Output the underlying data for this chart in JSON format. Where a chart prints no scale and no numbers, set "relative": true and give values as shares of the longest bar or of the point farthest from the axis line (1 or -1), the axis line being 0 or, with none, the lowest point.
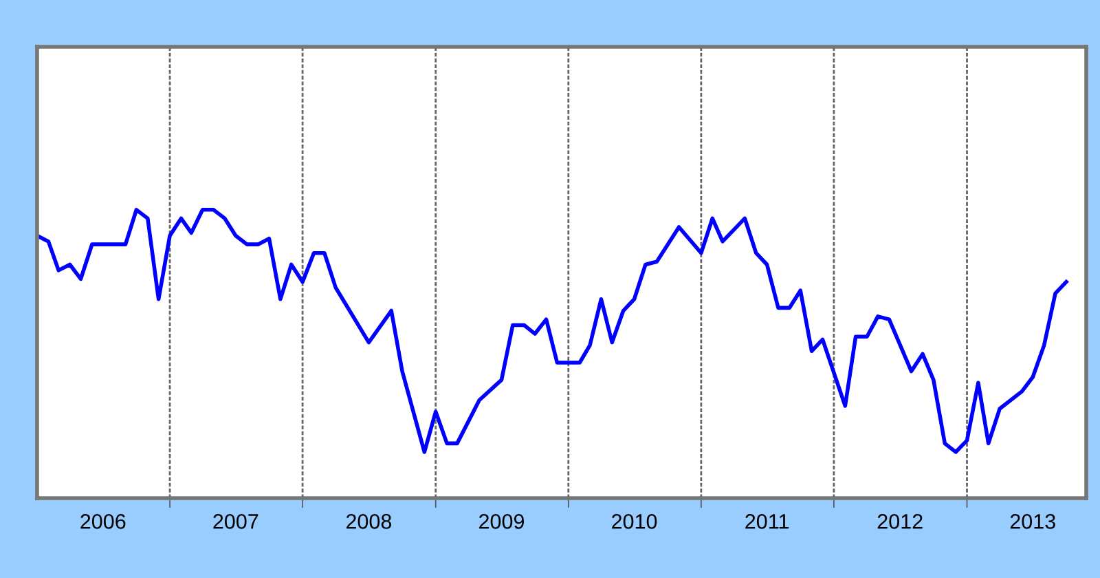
{
  "chart_data": {
    "type": "line",
    "relative": true,
    "x": [
      "2006-01",
      "2006-02",
      "2006-03",
      "2006-04",
      "2006-05",
      "2006-06",
      "2006-09",
      "2006-10",
      "2006-11",
      "2006-12",
      "2007-01",
      "2007-02",
      "2007-03",
      "2007-04",
      "2007-05",
      "2007-06",
      "2007-07",
      "2007-08",
      "2007-09",
      "2007-10",
      "2007-11",
      "2007-12",
      "2008-01",
      "2008-02",
      "2008-03",
      "2008-04",
      "2008-07",
      "2008-09",
      "2008-10",
      "2008-12",
      "2009-01",
      "2009-02",
      "2009-03",
      "2009-05",
      "2009-07",
      "2009-08",
      "2009-09",
      "2009-10",
      "2009-11",
      "2009-12",
      "2010-02",
      "2010-03",
      "2010-04",
      "2010-05",
      "2010-06",
      "2010-07",
      "2010-08",
      "2010-09",
      "2010-11",
      "2011-01",
      "2011-02",
      "2011-03",
      "2011-05",
      "2011-06",
      "2011-07",
      "2011-08",
      "2011-09",
      "2011-10",
      "2011-11",
      "2011-12",
      "2012-02",
      "2012-03",
      "2012-04",
      "2012-05",
      "2012-06",
      "2012-08",
      "2012-09",
      "2012-10",
      "2012-11",
      "2012-12",
      "2013-01",
      "2013-02",
      "2013-03",
      "2013-04",
      "2013-06",
      "2013-07",
      "2013-08",
      "2013-09",
      "2013-10"
    ],
    "series": [
      {
        "color": "#0000ff",
        "values": [
          0.91,
          0.89,
          0.79,
          0.81,
          0.76,
          0.88,
          0.88,
          1.0,
          0.97,
          0.69,
          0.91,
          0.97,
          0.92,
          1.0,
          1.0,
          0.97,
          0.91,
          0.88,
          0.88,
          0.9,
          0.69,
          0.81,
          0.75,
          0.85,
          0.85,
          0.73,
          0.54,
          0.65,
          0.44,
          0.16,
          0.3,
          0.19,
          0.19,
          0.34,
          0.41,
          0.6,
          0.6,
          0.57,
          0.62,
          0.47,
          0.47,
          0.53,
          0.69,
          0.54,
          0.65,
          0.69,
          0.81,
          0.82,
          0.94,
          0.85,
          0.97,
          0.89,
          0.97,
          0.85,
          0.81,
          0.66,
          0.66,
          0.72,
          0.51,
          0.55,
          0.32,
          0.56,
          0.56,
          0.63,
          0.62,
          0.44,
          0.5,
          0.41,
          0.19,
          0.16,
          0.2,
          0.4,
          0.19,
          0.31,
          0.37,
          0.42,
          0.53,
          0.71,
          0.75
        ]
      }
    ],
    "xlim": [
      "2006-01-01",
      "2013-11-25"
    ],
    "xticks": [
      {
        "value": "2006-07-01",
        "label": "2006"
      },
      {
        "value": "2007-01-01",
        "label": null
      },
      {
        "value": "2007-07-01",
        "label": "2007"
      },
      {
        "value": "2008-01-01",
        "label": null
      },
      {
        "value": "2008-07-01",
        "label": "2008"
      },
      {
        "value": "2009-01-01",
        "label": null
      },
      {
        "value": "2009-07-01",
        "label": "2009"
      },
      {
        "value": "2010-01-01",
        "label": null
      },
      {
        "value": "2010-07-01",
        "label": "2010"
      },
      {
        "value": "2011-01-01",
        "label": null
      },
      {
        "value": "2011-07-01",
        "label": "2011"
      },
      {
        "value": "2012-01-01",
        "label": null
      },
      {
        "value": "2012-07-01",
        "label": "2012"
      },
      {
        "value": "2013-01-01",
        "label": null
      },
      {
        "value": "2013-07-01",
        "label": "2013"
      }
    ],
    "grid": "x",
    "marker": "none",
    "line_style": "solid"
  }
}
